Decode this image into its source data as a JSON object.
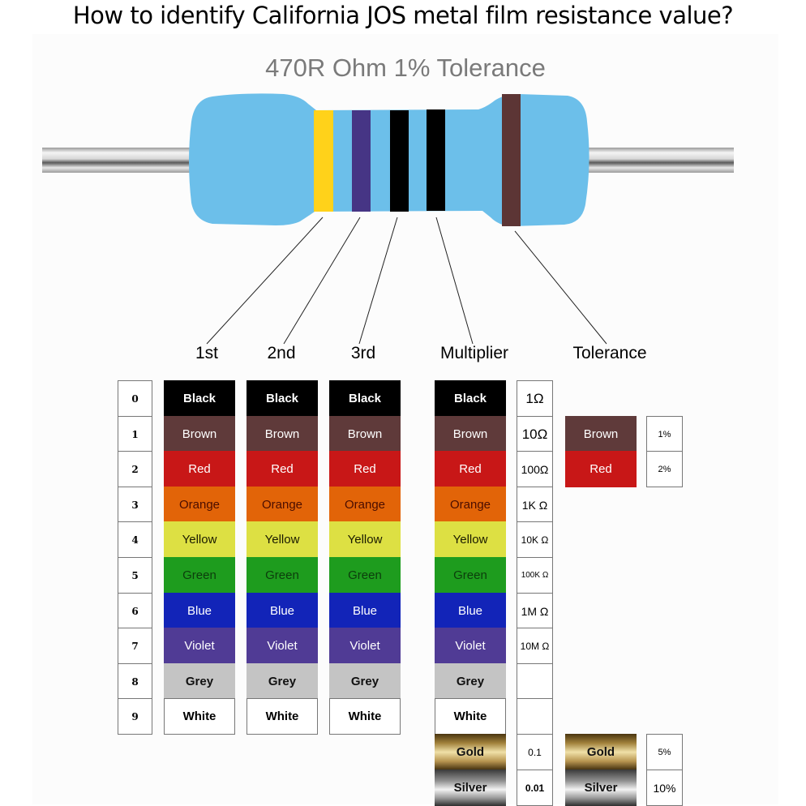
{
  "title": "How to identify California JOS metal film resistance value?",
  "resistor": {
    "label": "470R Ohm 1% Tolerance",
    "body_color": "#6cbfea",
    "bands": [
      {
        "name": "Yellow",
        "color": "#ffd21a"
      },
      {
        "name": "Violet",
        "color": "#463585"
      },
      {
        "name": "Black",
        "color": "#000000"
      },
      {
        "name": "Black",
        "color": "#000000"
      },
      {
        "name": "Brown",
        "color": "#5c3535"
      }
    ]
  },
  "headers": {
    "first": "1st",
    "second": "2nd",
    "third": "3rd",
    "multiplier": "Multiplier",
    "tolerance": "Tolerance"
  },
  "digits": [
    "0",
    "1",
    "2",
    "3",
    "4",
    "5",
    "6",
    "7",
    "8",
    "9"
  ],
  "colors": [
    {
      "name": "Black",
      "bg": "#000000",
      "fg": "#ffffff",
      "bold": true
    },
    {
      "name": "Brown",
      "bg": "#5f3a3a",
      "fg": "#ffffff",
      "bold": false
    },
    {
      "name": "Red",
      "bg": "#c81717",
      "fg": "#ffffff",
      "bold": false
    },
    {
      "name": "Orange",
      "bg": "#e26408",
      "fg": "#4a0d00",
      "bold": false
    },
    {
      "name": "Yellow",
      "bg": "#dde043",
      "fg": "#1a1a00",
      "bold": false
    },
    {
      "name": "Green",
      "bg": "#1e9c1e",
      "fg": "#0c3d0c",
      "bold": false
    },
    {
      "name": "Blue",
      "bg": "#1224b8",
      "fg": "#ffffff",
      "bold": false
    },
    {
      "name": "Violet",
      "bg": "#503b95",
      "fg": "#ffffff",
      "bold": false
    },
    {
      "name": "Grey",
      "bg": "#c4c4c4",
      "fg": "#111111",
      "bold": true
    },
    {
      "name": "White",
      "bg": "#ffffff",
      "fg": "#000000",
      "bold": true
    }
  ],
  "multiplier": {
    "values": [
      "1Ω",
      "10Ω",
      "100Ω",
      "1K Ω",
      "10K Ω",
      "100K Ω",
      "1M Ω",
      "10M Ω",
      "",
      ""
    ],
    "extra": [
      {
        "name": "Gold",
        "value": "0.1"
      },
      {
        "name": "Silver",
        "value": "0.01"
      }
    ]
  },
  "tolerance": [
    {
      "name": "Brown",
      "bg": "#5f3a3a",
      "fg": "#ffffff",
      "value": "1%"
    },
    {
      "name": "Red",
      "bg": "#c81717",
      "fg": "#ffffff",
      "value": "2%"
    },
    {
      "name": "Gold",
      "value": "5%"
    },
    {
      "name": "Silver",
      "value": "10%"
    }
  ]
}
